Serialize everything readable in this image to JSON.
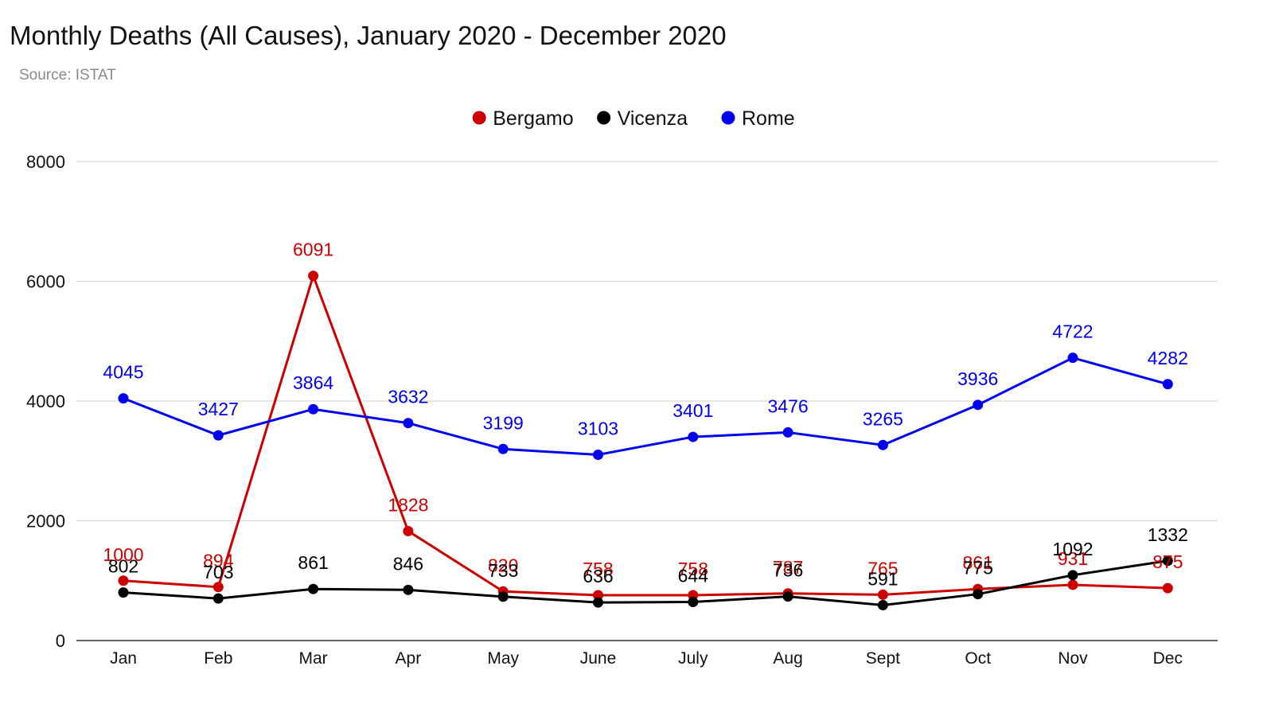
{
  "chart_data": {
    "type": "line",
    "title": "Monthly Deaths (All Causes), January 2020 - December 2020",
    "subtitle": "Source: ISTAT",
    "categories": [
      "Jan",
      "Feb",
      "Mar",
      "Apr",
      "May",
      "June",
      "July",
      "Aug",
      "Sept",
      "Oct",
      "Nov",
      "Dec"
    ],
    "series": [
      {
        "name": "Bergamo",
        "color": "#cc0000",
        "values": [
          1000,
          894,
          6091,
          1828,
          820,
          758,
          758,
          787,
          765,
          861,
          931,
          875
        ]
      },
      {
        "name": "Vicenza",
        "color": "#000000",
        "values": [
          802,
          703,
          861,
          846,
          733,
          636,
          644,
          736,
          591,
          775,
          1092,
          1332
        ]
      },
      {
        "name": "Rome",
        "color": "#0000ee",
        "values": [
          4045,
          3427,
          3864,
          3632,
          3199,
          3103,
          3401,
          3476,
          3265,
          3936,
          4722,
          4282
        ]
      }
    ],
    "ylim": [
      0,
      8000
    ],
    "yticks": [
      0,
      2000,
      4000,
      6000,
      8000
    ],
    "xlabel": "",
    "ylabel": "",
    "grid": true,
    "legend_position": "top-center"
  }
}
